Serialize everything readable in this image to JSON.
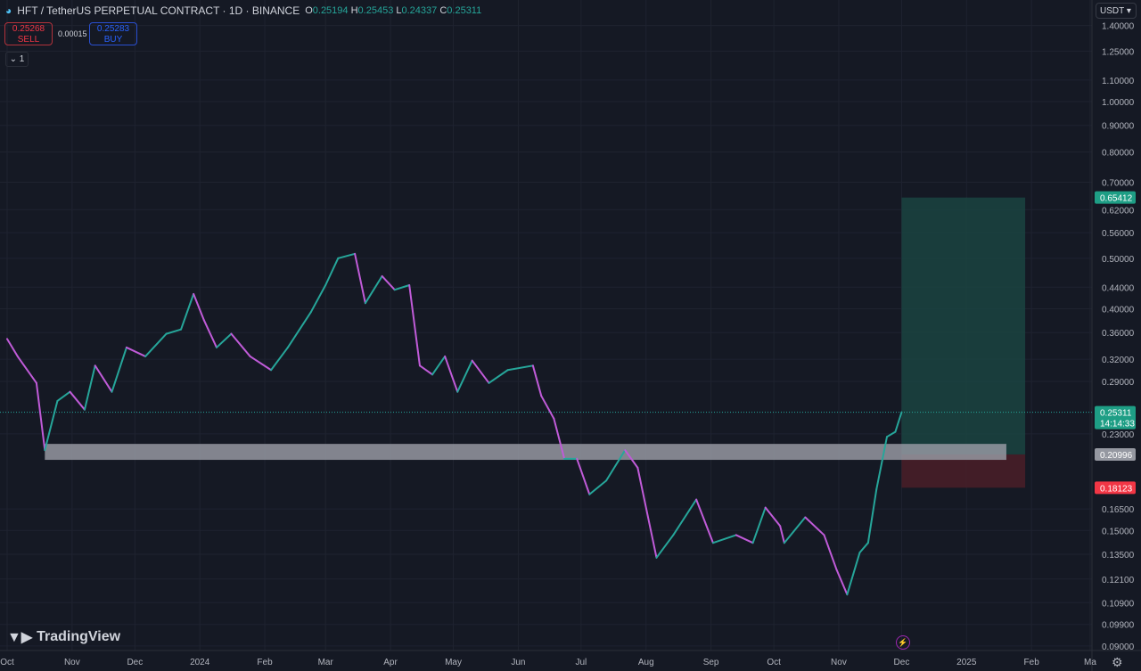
{
  "header": {
    "symbol_title": "HFT / TetherUS PERPETUAL CONTRACT · 1D · BINANCE",
    "ohlc": {
      "o_label": "O",
      "o": "0.25194",
      "h_label": "H",
      "h": "0.25453",
      "l_label": "L",
      "l": "0.24337",
      "c_label": "C",
      "c": "0.25311"
    }
  },
  "trade": {
    "sell_price": "0.25268",
    "sell_label": "SELL",
    "spread": "0.00015",
    "buy_price": "0.25283",
    "buy_label": "BUY"
  },
  "collapse_label": "⌄ 1",
  "currency": "USDT ▾",
  "logo_text": "TradingView",
  "colors": {
    "background": "#151924",
    "up": "#26a69a",
    "down": "#c05bd8",
    "target_zone": "#1b4a44",
    "stop_zone": "#4a1f28",
    "support_zone": "#9598a1",
    "last_price": "#26a69a",
    "stop_label": "#f23645"
  },
  "chart_data": {
    "type": "line",
    "scale": "log",
    "grid": true,
    "ylim": [
      0.09,
      1.4
    ],
    "xlim": [
      "2023-10-01",
      "2025-03-05"
    ],
    "y_ticks": [
      {
        "v": 1.4,
        "label": "1.40000"
      },
      {
        "v": 1.25,
        "label": "1.25000"
      },
      {
        "v": 1.1,
        "label": "1.10000"
      },
      {
        "v": 1.0,
        "label": "1.00000"
      },
      {
        "v": 0.9,
        "label": "0.90000"
      },
      {
        "v": 0.8,
        "label": "0.80000"
      },
      {
        "v": 0.7,
        "label": "0.70000"
      },
      {
        "v": 0.62,
        "label": "0.62000"
      },
      {
        "v": 0.56,
        "label": "0.56000"
      },
      {
        "v": 0.5,
        "label": "0.50000"
      },
      {
        "v": 0.44,
        "label": "0.44000"
      },
      {
        "v": 0.4,
        "label": "0.40000"
      },
      {
        "v": 0.36,
        "label": "0.36000"
      },
      {
        "v": 0.32,
        "label": "0.32000"
      },
      {
        "v": 0.29,
        "label": "0.29000"
      },
      {
        "v": 0.23,
        "label": "0.23000"
      },
      {
        "v": 0.165,
        "label": "0.16500"
      },
      {
        "v": 0.15,
        "label": "0.15000"
      },
      {
        "v": 0.135,
        "label": "0.13500"
      },
      {
        "v": 0.121,
        "label": "0.12100"
      },
      {
        "v": 0.109,
        "label": "0.10900"
      },
      {
        "v": 0.099,
        "label": "0.09900"
      },
      {
        "v": 0.09,
        "label": "0.09000"
      }
    ],
    "x_ticks": [
      {
        "d": "2023-10-01",
        "label": "Oct"
      },
      {
        "d": "2023-11-01",
        "label": "Nov"
      },
      {
        "d": "2023-12-01",
        "label": "Dec"
      },
      {
        "d": "2024-01-01",
        "label": "2024"
      },
      {
        "d": "2024-02-01",
        "label": "Feb"
      },
      {
        "d": "2024-03-01",
        "label": "Mar"
      },
      {
        "d": "2024-04-01",
        "label": "Apr"
      },
      {
        "d": "2024-05-01",
        "label": "May"
      },
      {
        "d": "2024-06-01",
        "label": "Jun"
      },
      {
        "d": "2024-07-01",
        "label": "Jul"
      },
      {
        "d": "2024-08-01",
        "label": "Aug"
      },
      {
        "d": "2024-09-01",
        "label": "Sep"
      },
      {
        "d": "2024-10-01",
        "label": "Oct"
      },
      {
        "d": "2024-11-01",
        "label": "Nov"
      },
      {
        "d": "2024-12-01",
        "label": "Dec"
      },
      {
        "d": "2025-01-01",
        "label": "2025"
      },
      {
        "d": "2025-02-01",
        "label": "Feb"
      },
      {
        "d": "2025-03-01",
        "label": "Ma"
      }
    ],
    "series": [
      {
        "x": [
          "2023-10-01",
          "2023-10-06",
          "2023-10-15",
          "2023-10-19",
          "2023-10-25",
          "2023-10-31",
          "2023-11-07",
          "2023-11-12",
          "2023-11-20",
          "2023-11-27",
          "2023-12-06",
          "2023-12-16",
          "2023-12-23",
          "2023-12-29",
          "2024-01-03",
          "2024-01-09",
          "2024-01-16",
          "2024-01-25",
          "2024-02-04",
          "2024-02-12",
          "2024-02-23",
          "2024-03-01",
          "2024-03-07",
          "2024-03-15",
          "2024-03-20",
          "2024-03-28",
          "2024-04-03",
          "2024-04-10",
          "2024-04-15",
          "2024-04-21",
          "2024-04-27",
          "2024-05-03",
          "2024-05-10",
          "2024-05-18",
          "2024-05-27",
          "2024-06-08",
          "2024-06-12",
          "2024-06-18",
          "2024-06-23",
          "2024-06-29",
          "2024-07-05",
          "2024-07-13",
          "2024-07-22",
          "2024-07-28",
          "2024-08-06",
          "2024-08-14",
          "2024-08-25",
          "2024-09-02",
          "2024-09-13",
          "2024-09-21",
          "2024-09-27",
          "2024-10-04",
          "2024-10-06",
          "2024-10-16",
          "2024-10-25",
          "2024-10-31",
          "2024-11-05",
          "2024-11-11",
          "2024-11-15",
          "2024-11-19",
          "2024-11-24",
          "2024-11-28",
          "2024-12-01"
        ],
        "values": [
          0.35,
          0.324,
          0.288,
          0.214,
          0.266,
          0.277,
          0.256,
          0.311,
          0.277,
          0.337,
          0.324,
          0.358,
          0.365,
          0.427,
          0.38,
          0.337,
          0.358,
          0.324,
          0.305,
          0.337,
          0.394,
          0.444,
          0.5,
          0.51,
          0.41,
          0.462,
          0.435,
          0.444,
          0.311,
          0.299,
          0.324,
          0.277,
          0.318,
          0.288,
          0.305,
          0.311,
          0.272,
          0.246,
          0.206,
          0.206,
          0.176,
          0.187,
          0.214,
          0.198,
          0.133,
          0.147,
          0.172,
          0.142,
          0.147,
          0.142,
          0.166,
          0.153,
          0.142,
          0.159,
          0.147,
          0.126,
          0.113,
          0.136,
          0.142,
          0.18,
          0.227,
          0.232,
          0.25311
        ]
      }
    ],
    "last_price": {
      "value": 0.25311,
      "label": "0.25311",
      "countdown": "14:14:33"
    },
    "support_zone": {
      "from": "2023-10-19",
      "to": "2025-01-20",
      "low": 0.205,
      "high": 0.22
    },
    "long_position": {
      "from": "2024-12-01",
      "to": "2025-01-29",
      "entry": 0.20996,
      "entry_label": "0.20996",
      "target": 0.65412,
      "target_label": "0.65412",
      "stop": 0.18123,
      "stop_label": "0.18123"
    }
  }
}
